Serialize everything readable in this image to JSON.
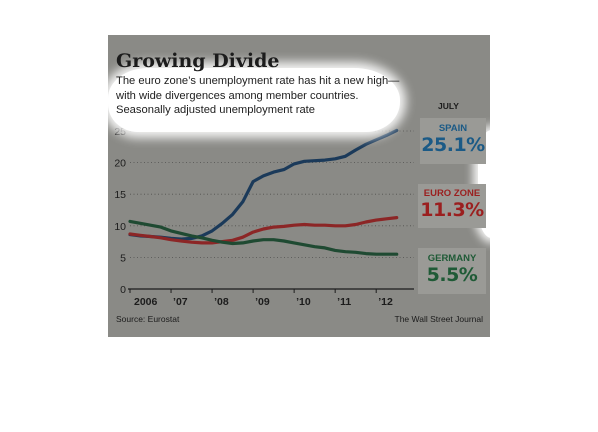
{
  "chart_data": {
    "type": "line",
    "title": "Growing Divide",
    "subtitle_lines": [
      "The euro zone’s unemployment rate has hit a new high—",
      "with wide divergences among member countries.",
      "Seasonally adjusted unemployment rate"
    ],
    "xlabel": "",
    "ylabel": "",
    "x_tick_labels": [
      "2006",
      "’07",
      "’08",
      "’09",
      "’10",
      "’11",
      "’12"
    ],
    "x_tick_values": [
      2006,
      2007,
      2008,
      2009,
      2010,
      2011,
      2012
    ],
    "xlim": [
      2006,
      2012.58
    ],
    "y_tick_labels": [
      "0",
      "5",
      "10",
      "15",
      "20",
      "25"
    ],
    "y_tick_values": [
      0,
      5,
      10,
      15,
      20,
      25
    ],
    "ylim": [
      0,
      25
    ],
    "grid": "horizontal-dotted",
    "series": [
      {
        "name": "SPAIN",
        "color": "#1b3a5a",
        "latest": "25.1%",
        "points": [
          [
            2006.0,
            8.6
          ],
          [
            2006.25,
            8.4
          ],
          [
            2006.5,
            8.3
          ],
          [
            2006.75,
            8.2
          ],
          [
            2007.0,
            8.0
          ],
          [
            2007.25,
            7.9
          ],
          [
            2007.5,
            8.0
          ],
          [
            2007.75,
            8.4
          ],
          [
            2008.0,
            9.2
          ],
          [
            2008.25,
            10.4
          ],
          [
            2008.5,
            11.8
          ],
          [
            2008.75,
            13.8
          ],
          [
            2009.0,
            17.0
          ],
          [
            2009.25,
            17.9
          ],
          [
            2009.5,
            18.5
          ],
          [
            2009.75,
            18.9
          ],
          [
            2010.0,
            19.8
          ],
          [
            2010.25,
            20.2
          ],
          [
            2010.5,
            20.3
          ],
          [
            2010.75,
            20.4
          ],
          [
            2011.0,
            20.6
          ],
          [
            2011.25,
            21.0
          ],
          [
            2011.5,
            22.0
          ],
          [
            2011.75,
            22.9
          ],
          [
            2012.0,
            23.6
          ],
          [
            2012.25,
            24.3
          ],
          [
            2012.5,
            25.1
          ]
        ]
      },
      {
        "name": "EURO ZONE",
        "color": "#8c2626",
        "latest": "11.3%",
        "points": [
          [
            2006.0,
            8.7
          ],
          [
            2006.25,
            8.5
          ],
          [
            2006.5,
            8.3
          ],
          [
            2006.75,
            8.1
          ],
          [
            2007.0,
            7.8
          ],
          [
            2007.25,
            7.6
          ],
          [
            2007.5,
            7.4
          ],
          [
            2007.75,
            7.3
          ],
          [
            2008.0,
            7.3
          ],
          [
            2008.25,
            7.5
          ],
          [
            2008.5,
            7.7
          ],
          [
            2008.75,
            8.2
          ],
          [
            2009.0,
            9.0
          ],
          [
            2009.25,
            9.5
          ],
          [
            2009.5,
            9.8
          ],
          [
            2009.75,
            9.9
          ],
          [
            2010.0,
            10.1
          ],
          [
            2010.25,
            10.2
          ],
          [
            2010.5,
            10.1
          ],
          [
            2010.75,
            10.1
          ],
          [
            2011.0,
            10.0
          ],
          [
            2011.25,
            10.0
          ],
          [
            2011.5,
            10.2
          ],
          [
            2011.75,
            10.6
          ],
          [
            2012.0,
            10.9
          ],
          [
            2012.25,
            11.1
          ],
          [
            2012.5,
            11.3
          ]
        ]
      },
      {
        "name": "GERMANY",
        "color": "#1f4a32",
        "latest": "5.5%",
        "points": [
          [
            2006.0,
            10.7
          ],
          [
            2006.25,
            10.4
          ],
          [
            2006.5,
            10.1
          ],
          [
            2006.75,
            9.8
          ],
          [
            2007.0,
            9.2
          ],
          [
            2007.25,
            8.8
          ],
          [
            2007.5,
            8.4
          ],
          [
            2007.75,
            8.1
          ],
          [
            2008.0,
            7.7
          ],
          [
            2008.25,
            7.4
          ],
          [
            2008.5,
            7.2
          ],
          [
            2008.75,
            7.3
          ],
          [
            2009.0,
            7.6
          ],
          [
            2009.25,
            7.8
          ],
          [
            2009.5,
            7.8
          ],
          [
            2009.75,
            7.6
          ],
          [
            2010.0,
            7.3
          ],
          [
            2010.25,
            7.0
          ],
          [
            2010.5,
            6.7
          ],
          [
            2010.75,
            6.5
          ],
          [
            2011.0,
            6.1
          ],
          [
            2011.25,
            5.9
          ],
          [
            2011.5,
            5.8
          ],
          [
            2011.75,
            5.6
          ],
          [
            2012.0,
            5.5
          ],
          [
            2012.25,
            5.5
          ],
          [
            2012.5,
            5.5
          ]
        ]
      }
    ]
  },
  "callouts": {
    "header": "JULY",
    "spain": {
      "name": "SPAIN",
      "value": "25.1%",
      "color": "#1b5a86"
    },
    "euro": {
      "name": "EURO ZONE",
      "value": "11.3%",
      "color": "#9b1f1f"
    },
    "germany": {
      "name": "GERMANY",
      "value": "5.5%",
      "color": "#1f5a36"
    }
  },
  "footer": {
    "source": "Source: Eurostat",
    "publisher": "The Wall Street Journal"
  },
  "colors": {
    "panel_background": "#8a8a86",
    "callout_background": "#9a9a96"
  }
}
